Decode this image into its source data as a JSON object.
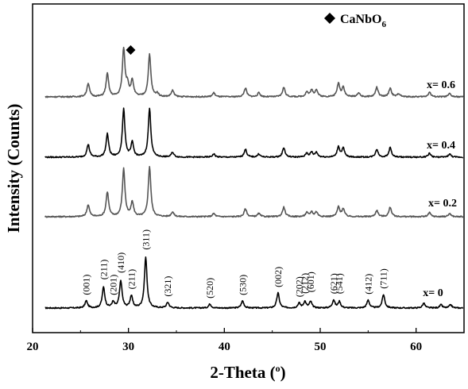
{
  "chart_data": {
    "type": "line",
    "xlabel": "2-Theta (",
    "xlabel_sup": "o",
    "xlabel_end": ")",
    "ylabel": "Intensity (Counts)",
    "xlim": [
      20,
      65
    ],
    "x_ticks": [
      20,
      30,
      40,
      50,
      60
    ],
    "grid": false,
    "legend": {
      "marker": "diamond",
      "label_main": "CaNbO",
      "label_sub": "6",
      "placement": "top-right"
    },
    "series": [
      {
        "name": "x= 0",
        "color": "#000000",
        "baseline": 0,
        "peaks": [
          {
            "x": 25.6,
            "h": 9
          },
          {
            "x": 27.4,
            "h": 26
          },
          {
            "x": 28.4,
            "h": 7
          },
          {
            "x": 29.2,
            "h": 34
          },
          {
            "x": 30.3,
            "h": 15
          },
          {
            "x": 31.8,
            "h": 64
          },
          {
            "x": 34.1,
            "h": 7
          },
          {
            "x": 38.5,
            "h": 5
          },
          {
            "x": 41.9,
            "h": 9
          },
          {
            "x": 45.6,
            "h": 19
          },
          {
            "x": 47.8,
            "h": 6
          },
          {
            "x": 48.4,
            "h": 8
          },
          {
            "x": 49.0,
            "h": 8
          },
          {
            "x": 51.4,
            "h": 10
          },
          {
            "x": 52.0,
            "h": 8
          },
          {
            "x": 55.0,
            "h": 10
          },
          {
            "x": 56.6,
            "h": 17
          },
          {
            "x": 60.8,
            "h": 6
          },
          {
            "x": 62.6,
            "h": 4
          },
          {
            "x": 63.6,
            "h": 4
          }
        ]
      },
      {
        "name": "x= 0.2",
        "color": "#555555",
        "baseline": 115,
        "peaks": [
          {
            "x": 25.8,
            "h": 15
          },
          {
            "x": 27.8,
            "h": 31
          },
          {
            "x": 29.5,
            "h": 60
          },
          {
            "x": 30.4,
            "h": 18
          },
          {
            "x": 32.2,
            "h": 63
          },
          {
            "x": 34.6,
            "h": 6
          },
          {
            "x": 38.9,
            "h": 4
          },
          {
            "x": 42.2,
            "h": 10
          },
          {
            "x": 43.6,
            "h": 4
          },
          {
            "x": 46.2,
            "h": 12
          },
          {
            "x": 48.6,
            "h": 5
          },
          {
            "x": 49.1,
            "h": 6
          },
          {
            "x": 49.6,
            "h": 6
          },
          {
            "x": 51.9,
            "h": 12
          },
          {
            "x": 52.4,
            "h": 10
          },
          {
            "x": 55.9,
            "h": 8
          },
          {
            "x": 57.3,
            "h": 12
          },
          {
            "x": 61.4,
            "h": 5
          },
          {
            "x": 63.5,
            "h": 4
          }
        ]
      },
      {
        "name": "x= 0.4",
        "color": "#000000",
        "baseline": 190,
        "peaks": [
          {
            "x": 25.8,
            "h": 16
          },
          {
            "x": 27.8,
            "h": 29
          },
          {
            "x": 29.5,
            "h": 60
          },
          {
            "x": 30.4,
            "h": 18
          },
          {
            "x": 32.2,
            "h": 61
          },
          {
            "x": 34.6,
            "h": 6
          },
          {
            "x": 38.9,
            "h": 4
          },
          {
            "x": 42.2,
            "h": 10
          },
          {
            "x": 43.6,
            "h": 4
          },
          {
            "x": 46.2,
            "h": 12
          },
          {
            "x": 48.6,
            "h": 5
          },
          {
            "x": 49.1,
            "h": 6
          },
          {
            "x": 49.6,
            "h": 6
          },
          {
            "x": 51.9,
            "h": 13
          },
          {
            "x": 52.4,
            "h": 11
          },
          {
            "x": 55.9,
            "h": 10
          },
          {
            "x": 57.3,
            "h": 12
          },
          {
            "x": 61.4,
            "h": 5
          },
          {
            "x": 63.5,
            "h": 4
          }
        ]
      },
      {
        "name": "x= 0.6",
        "color": "#555555",
        "baseline": 266,
        "peaks": [
          {
            "x": 25.8,
            "h": 17
          },
          {
            "x": 27.8,
            "h": 29
          },
          {
            "x": 29.5,
            "h": 60
          },
          {
            "x": 29.9,
            "h": 14
          },
          {
            "x": 30.4,
            "h": 20
          },
          {
            "x": 32.2,
            "h": 53
          },
          {
            "x": 33.0,
            "h": 4
          },
          {
            "x": 34.6,
            "h": 8
          },
          {
            "x": 38.9,
            "h": 5
          },
          {
            "x": 42.2,
            "h": 11
          },
          {
            "x": 43.6,
            "h": 5
          },
          {
            "x": 46.2,
            "h": 12
          },
          {
            "x": 48.6,
            "h": 6
          },
          {
            "x": 49.1,
            "h": 8
          },
          {
            "x": 49.6,
            "h": 9
          },
          {
            "x": 51.9,
            "h": 17
          },
          {
            "x": 52.4,
            "h": 12
          },
          {
            "x": 54.0,
            "h": 5
          },
          {
            "x": 55.9,
            "h": 12
          },
          {
            "x": 57.3,
            "h": 11
          },
          {
            "x": 58.2,
            "h": 4
          },
          {
            "x": 61.4,
            "h": 6
          },
          {
            "x": 63.5,
            "h": 4
          }
        ]
      }
    ],
    "reflections": [
      {
        "label": "(001)",
        "x": 25.6
      },
      {
        "label": "(211)",
        "x": 27.4
      },
      {
        "label": "(201)",
        "x": 28.4
      },
      {
        "label": "(410)",
        "x": 29.2
      },
      {
        "label": "(211)",
        "x": 30.3
      },
      {
        "label": "(311)",
        "x": 31.8
      },
      {
        "label": "(321)",
        "x": 34.1
      },
      {
        "label": "(520)",
        "x": 38.5
      },
      {
        "label": "(530)",
        "x": 41.9
      },
      {
        "label": "(002)",
        "x": 45.6
      },
      {
        "label": "(202)",
        "x": 47.8
      },
      {
        "label": "(212)",
        "x": 48.4
      },
      {
        "label": "(601)",
        "x": 49.0
      },
      {
        "label": "(621)",
        "x": 51.4
      },
      {
        "label": "(541)",
        "x": 52.0
      },
      {
        "label": "(412)",
        "x": 55.0
      },
      {
        "label": "(711)",
        "x": 56.6
      }
    ],
    "impurity_markers": [
      {
        "x": 29.9,
        "series": "x= 0.6",
        "symbol": "diamond"
      }
    ]
  }
}
